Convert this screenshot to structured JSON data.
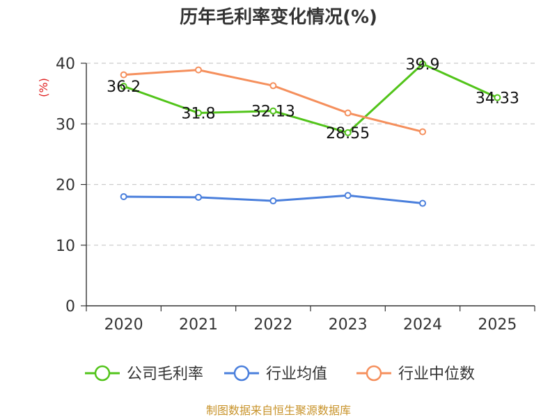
{
  "chart_data": {
    "type": "line",
    "title": "历年毛利率变化情况(%)",
    "ylabel": "(%)",
    "xlabel": "",
    "categories": [
      "2020",
      "2021",
      "2022",
      "2023",
      "2024",
      "2025"
    ],
    "ylim": [
      0,
      40
    ],
    "yticks": [
      0,
      10,
      20,
      30,
      40
    ],
    "grid": true,
    "legend_position": "bottom",
    "series": [
      {
        "name": "公司毛利率",
        "color": "#52c41a",
        "values": [
          36.2,
          31.8,
          32.13,
          28.55,
          39.9,
          34.33
        ],
        "labels": [
          "36.2",
          "31.8",
          "32.13",
          "28.55",
          "39.9",
          "34.33"
        ]
      },
      {
        "name": "行业均值",
        "color": "#4a7fdc",
        "values": [
          18.0,
          17.9,
          17.3,
          18.2,
          16.9,
          null
        ]
      },
      {
        "name": "行业中位数",
        "color": "#f58f5c",
        "values": [
          38.1,
          38.9,
          36.3,
          31.8,
          28.7,
          null
        ]
      }
    ],
    "source": "制图数据来自恒生聚源数据库",
    "ylabel_color": "#e02020",
    "source_color": "#c8932a"
  }
}
